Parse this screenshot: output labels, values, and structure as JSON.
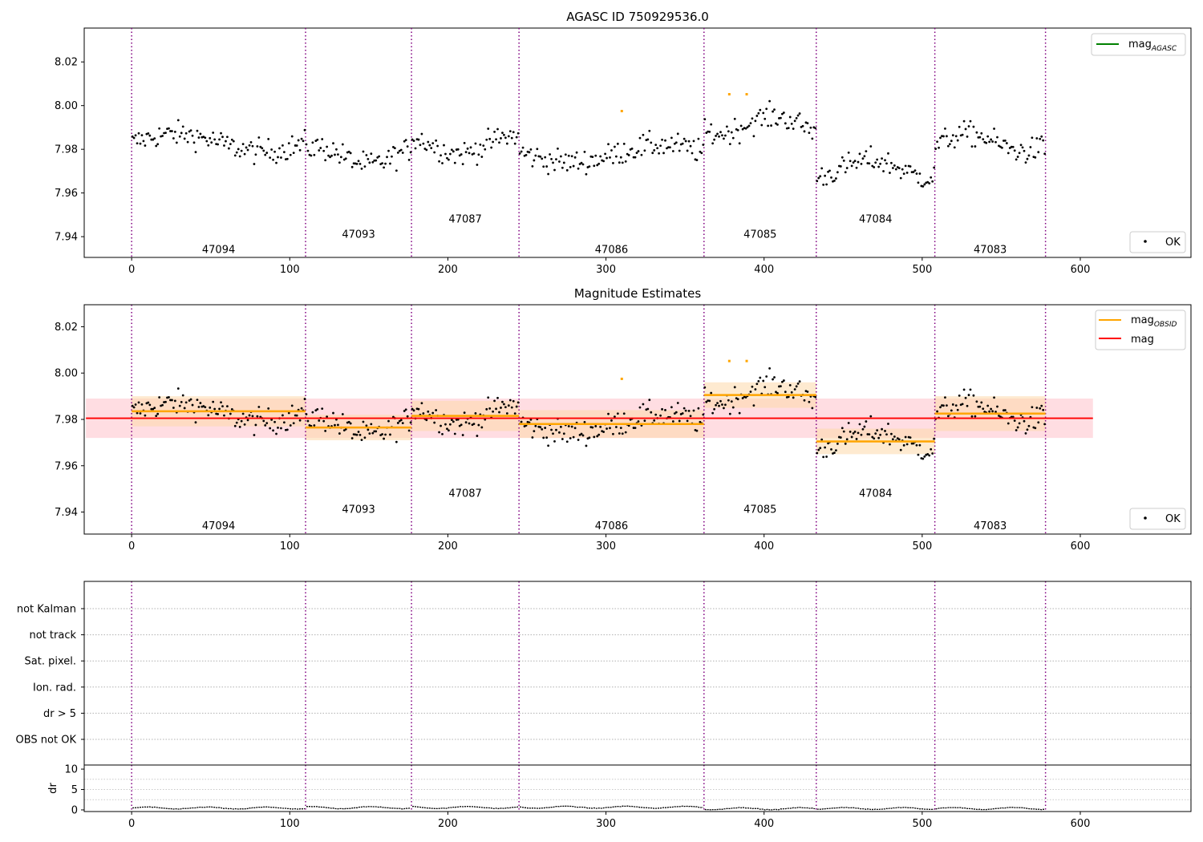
{
  "figure": {
    "panel1_title": "AGASC ID 750929536.0",
    "panel2_title": "Magnitude Estimates"
  },
  "legends": {
    "mag_agasc_main": "mag",
    "mag_agasc_sub": "AGASC",
    "mag_obsid_main": "mag",
    "mag_obsid_sub": "OBSID",
    "mag": "mag",
    "ok": "OK"
  },
  "colors": {
    "points_ok": "#000000",
    "points_flagged": "#FFA500",
    "obs_boundary": "#800080",
    "mag_obsid": "#FFA500",
    "mag_obsid_band": "#FDD9A9",
    "mag": "#FF0000",
    "mag_band": "#FFC7CE",
    "mag_agasc": "#008000"
  },
  "chart_data": [
    {
      "type": "scatter",
      "title": "AGASC ID 750929536.0",
      "xlabel": "",
      "ylabel": "",
      "xlim": [
        -30,
        670
      ],
      "ylim": [
        7.9305,
        8.0355
      ],
      "yticks": [
        7.94,
        7.96,
        7.98,
        8.0,
        8.02
      ],
      "xticks": [
        0,
        100,
        200,
        300,
        400,
        500,
        600
      ],
      "obs_boundaries": [
        0,
        110,
        177,
        245,
        362,
        433,
        508,
        578
      ],
      "observations": [
        {
          "obsid": "47094",
          "x_start": 0,
          "x_end": 110,
          "mean": 7.983,
          "label_y": 7.934
        },
        {
          "obsid": "47093",
          "x_start": 110,
          "x_end": 177,
          "mean": 7.977,
          "label_y": 7.941
        },
        {
          "obsid": "47087",
          "x_start": 177,
          "x_end": 245,
          "mean": 7.982,
          "label_y": 7.948
        },
        {
          "obsid": "47086",
          "x_start": 245,
          "x_end": 362,
          "mean": 7.978,
          "label_y": 7.934
        },
        {
          "obsid": "47085",
          "x_start": 362,
          "x_end": 433,
          "mean": 7.991,
          "label_y": 7.941
        },
        {
          "obsid": "47084",
          "x_start": 433,
          "x_end": 508,
          "mean": 7.971,
          "label_y": 7.948
        },
        {
          "obsid": "47083",
          "x_start": 508,
          "x_end": 578,
          "mean": 7.983,
          "label_y": 7.934
        }
      ],
      "flagged_points": [
        [
          310,
          7.9975
        ],
        [
          378,
          8.0052
        ],
        [
          389,
          8.0052
        ]
      ],
      "legend": [
        "mag AGASC",
        "OK"
      ],
      "legend_placement": [
        "top-right",
        "bottom-right"
      ]
    },
    {
      "type": "scatter",
      "title": "Magnitude Estimates",
      "xlim": [
        -30,
        670
      ],
      "ylim": [
        7.9305,
        8.0295
      ],
      "yticks": [
        7.94,
        7.96,
        7.98,
        8.0,
        8.02
      ],
      "xticks": [
        0,
        100,
        200,
        300,
        400,
        500,
        600
      ],
      "mag": 7.9805,
      "mag_band": [
        7.972,
        7.989
      ],
      "mag_x_range": [
        0,
        608
      ],
      "obsid_estimates": [
        {
          "obsid": "47094",
          "x_start": 0,
          "x_end": 110,
          "mag": 7.9835,
          "band": [
            7.977,
            7.99
          ]
        },
        {
          "obsid": "47093",
          "x_start": 110,
          "x_end": 177,
          "mag": 7.9765,
          "band": [
            7.971,
            7.982
          ]
        },
        {
          "obsid": "47087",
          "x_start": 177,
          "x_end": 245,
          "mag": 7.9815,
          "band": [
            7.975,
            7.988
          ]
        },
        {
          "obsid": "47086",
          "x_start": 245,
          "x_end": 362,
          "mag": 7.978,
          "band": [
            7.972,
            7.984
          ]
        },
        {
          "obsid": "47085",
          "x_start": 362,
          "x_end": 433,
          "mag": 7.9905,
          "band": [
            7.985,
            7.996
          ]
        },
        {
          "obsid": "47084",
          "x_start": 433,
          "x_end": 508,
          "mag": 7.9705,
          "band": [
            7.965,
            7.976
          ]
        },
        {
          "obsid": "47083",
          "x_start": 508,
          "x_end": 578,
          "mag": 7.9825,
          "band": [
            7.975,
            7.99
          ]
        }
      ],
      "legend": [
        "mag OBSID",
        "mag",
        "OK"
      ],
      "legend_placement": [
        "top-right",
        "bottom-right"
      ]
    },
    {
      "type": "scatter",
      "title": "",
      "xlim": [
        -30,
        670
      ],
      "flag_categories": [
        "not Kalman",
        "not track",
        "Sat. pixel.",
        "Ion. rad.",
        "dr > 5",
        "OBS not OK"
      ],
      "flag_points": []
    },
    {
      "type": "line",
      "title": "",
      "ylabel": "dr",
      "xlim": [
        -30,
        670
      ],
      "ylim": [
        -0.4,
        11
      ],
      "yticks": [
        0,
        5,
        10
      ],
      "xticks": [
        0,
        100,
        200,
        300,
        400,
        500,
        600
      ],
      "dr_level_by_obs": [
        {
          "obsid": "47094",
          "mean": 0.45
        },
        {
          "obsid": "47093",
          "mean": 0.55
        },
        {
          "obsid": "47087",
          "mean": 0.6
        },
        {
          "obsid": "47086",
          "mean": 0.65
        },
        {
          "obsid": "47085",
          "mean": 0.3
        },
        {
          "obsid": "47084",
          "mean": 0.35
        },
        {
          "obsid": "47083",
          "mean": 0.35
        }
      ]
    }
  ]
}
